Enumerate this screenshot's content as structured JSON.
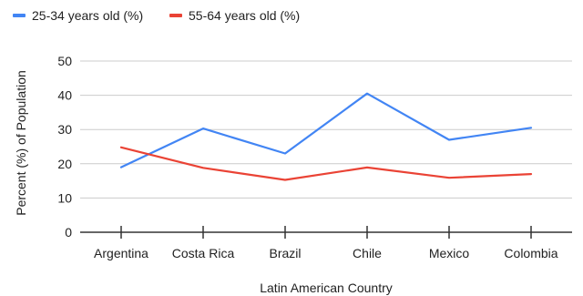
{
  "chart_data": {
    "type": "line",
    "title": "",
    "xlabel": "Latin American Country",
    "ylabel": "Percent (%) of Population",
    "categories": [
      "Argentina",
      "Costa Rica",
      "Brazil",
      "Chile",
      "Mexico",
      "Colombia"
    ],
    "ylim": [
      0,
      50
    ],
    "yticks": [
      0,
      10,
      20,
      30,
      40,
      50
    ],
    "grid": true,
    "legend_position": "top-left",
    "series": [
      {
        "name": "25-34 years old (%)",
        "color": "#4285F4",
        "values": [
          19,
          30.3,
          23,
          40.5,
          27,
          30.5
        ]
      },
      {
        "name": "55-64 years old (%)",
        "color": "#EA4335",
        "values": [
          24.8,
          18.8,
          15.3,
          18.9,
          15.9,
          17
        ]
      }
    ]
  }
}
